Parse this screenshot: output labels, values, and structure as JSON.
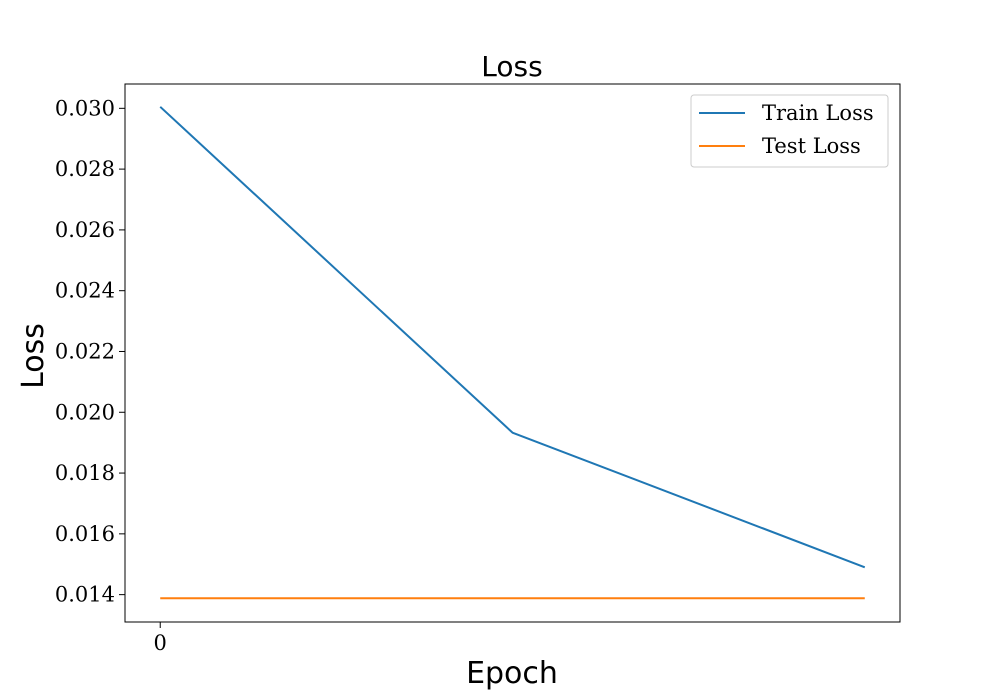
{
  "chart_data": {
    "type": "line",
    "title": "Loss",
    "xlabel": "Epoch",
    "ylabel": "Loss",
    "x": [
      0,
      1,
      2
    ],
    "x_ticks": [
      0
    ],
    "x_tick_labels": [
      "0"
    ],
    "xlim": [
      -0.1,
      2.1
    ],
    "ylim": [
      0.0131,
      0.0308
    ],
    "y_ticks": [
      0.014,
      0.016,
      0.018,
      0.02,
      0.022,
      0.024,
      0.026,
      0.028,
      0.03
    ],
    "y_tick_labels": [
      "0.014",
      "0.016",
      "0.018",
      "0.020",
      "0.022",
      "0.024",
      "0.026",
      "0.028",
      "0.030"
    ],
    "grid": false,
    "legend_position": "top-right",
    "series": [
      {
        "name": "Train Loss",
        "color": "#1f77b4",
        "values": [
          0.03005,
          0.01933,
          0.0149
        ]
      },
      {
        "name": "Test Loss",
        "color": "#ff7f0e",
        "values": [
          0.01388,
          0.01388,
          0.01388
        ]
      }
    ]
  }
}
